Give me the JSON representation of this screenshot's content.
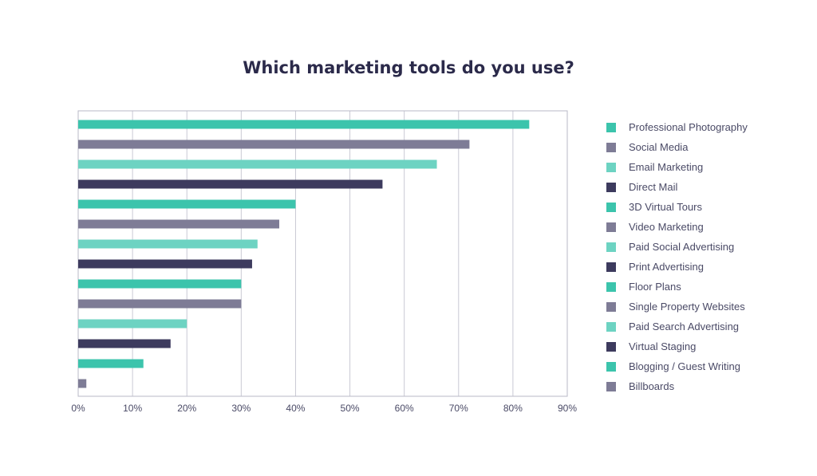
{
  "chart_data": {
    "type": "bar",
    "orientation": "horizontal",
    "title": "Which marketing tools do you use?",
    "xlabel": "",
    "ylabel": "",
    "xlim": [
      0,
      90
    ],
    "x_ticks": [
      "0%",
      "10%",
      "20%",
      "30%",
      "40%",
      "50%",
      "60%",
      "70%",
      "80%",
      "90%"
    ],
    "grid": true,
    "legend_position": "right",
    "categories": [
      "Professional Photography",
      "Social Media",
      "Email Marketing",
      "Direct Mail",
      "3D Virtual Tours",
      "Video Marketing",
      "Paid Social Advertising",
      "Print Advertising",
      "Floor Plans",
      "Single Property Websites",
      "Paid Search Advertising",
      "Virtual Staging",
      "Blogging / Guest Writing",
      "Billboards"
    ],
    "values": [
      83,
      72,
      66,
      56,
      40,
      37,
      33,
      32,
      30,
      30,
      20,
      17,
      12,
      1.5
    ],
    "unit": "%",
    "colors": [
      "#3cc4ac",
      "#7e7c96",
      "#6dd3c2",
      "#3d3b5e",
      "#3cc4ac",
      "#7e7c96",
      "#6dd3c2",
      "#3d3b5e",
      "#3cc4ac",
      "#7e7c96",
      "#6dd3c2",
      "#3d3b5e",
      "#3cc4ac",
      "#7e7c96"
    ]
  }
}
